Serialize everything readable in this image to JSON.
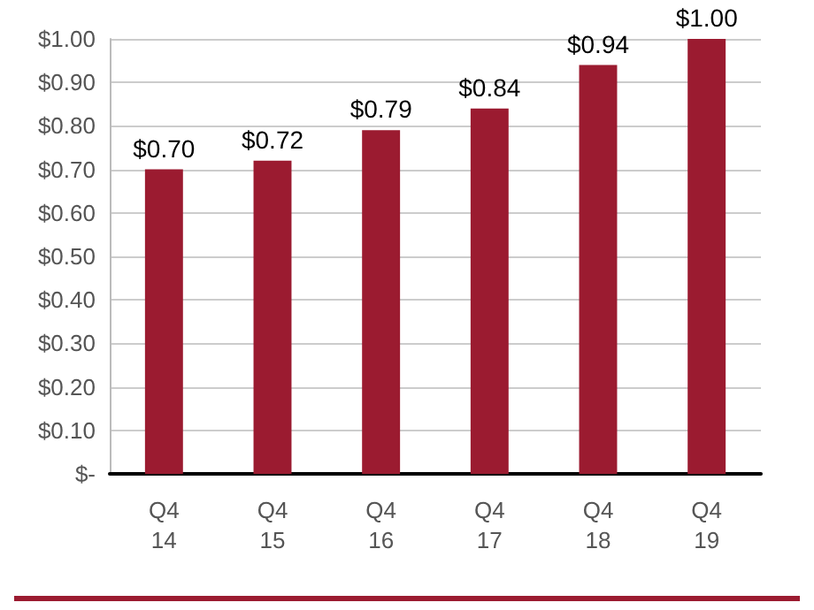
{
  "chart_data": {
    "type": "bar",
    "categories": [
      "Q4 14",
      "Q4 15",
      "Q4 16",
      "Q4 17",
      "Q4 18",
      "Q4 19"
    ],
    "values": [
      0.7,
      0.72,
      0.79,
      0.84,
      0.94,
      1.0
    ],
    "value_labels": [
      "$0.70",
      "$0.72",
      "$0.79",
      "$0.84",
      "$0.94",
      "$1.00"
    ],
    "color": "#9b1b30",
    "ylim": [
      0,
      1
    ],
    "yticks": [
      {
        "value": 0,
        "label": "$-"
      },
      {
        "value": 0.1,
        "label": "$0.10"
      },
      {
        "value": 0.2,
        "label": "$0.20"
      },
      {
        "value": 0.3,
        "label": "$0.30"
      },
      {
        "value": 0.4,
        "label": "$0.40"
      },
      {
        "value": 0.5,
        "label": "$0.50"
      },
      {
        "value": 0.6,
        "label": "$0.60"
      },
      {
        "value": 0.7,
        "label": "$0.70"
      },
      {
        "value": 0.8,
        "label": "$0.80"
      },
      {
        "value": 0.9,
        "label": "$0.90"
      },
      {
        "value": 1,
        "label": "$1.00"
      }
    ],
    "grid": "y"
  }
}
